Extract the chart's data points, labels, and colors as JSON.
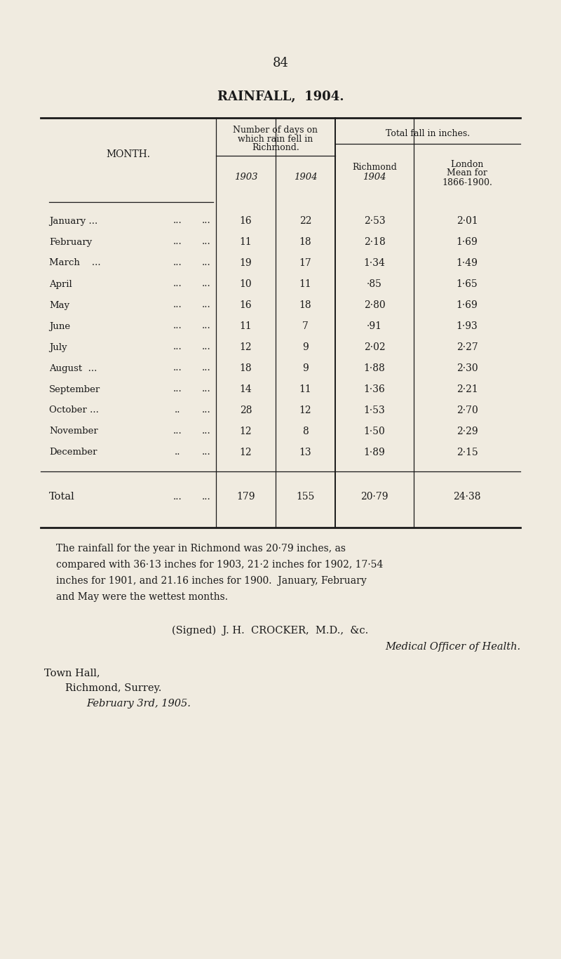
{
  "page_number": "84",
  "title": "RAINFALL,  1904.",
  "background_color": "#f0ebe0",
  "text_color": "#1a1a1a",
  "table": {
    "months": [
      "January ...",
      "February",
      "March    ...",
      "April",
      "May",
      "June",
      "July",
      "August  ...",
      "September",
      "October ...",
      "November",
      "December"
    ],
    "month_dots2": [
      "...",
      "...",
      "...",
      "...",
      "...",
      "...",
      "...",
      "...",
      "...",
      "..",
      "...",
      ".."
    ],
    "month_dots3": [
      "...",
      "...",
      "...",
      "...",
      "...",
      "...",
      "...",
      "...",
      "...",
      "...",
      "...",
      "..."
    ],
    "days_1903": [
      "16",
      "11",
      "19",
      "10",
      "16",
      "11",
      "12",
      "18",
      "14",
      "28",
      "12",
      "12"
    ],
    "days_1904": [
      "22",
      "18",
      "17",
      "11",
      "18",
      "7",
      "9",
      "9",
      "11",
      "12",
      "8",
      "13"
    ],
    "total_rich": [
      "2·53",
      "2·18",
      "1·34",
      "·85",
      "2·80",
      "·91",
      "2·02",
      "1·88",
      "1·36",
      "1·53",
      "1·50",
      "1·89"
    ],
    "total_london": [
      "2·01",
      "1·69",
      "1·49",
      "1·65",
      "1·69",
      "1·93",
      "2·27",
      "2·30",
      "2·21",
      "2·70",
      "2·29",
      "2·15"
    ],
    "total_days_1903": "179",
    "total_days_1904": "155",
    "total_rich_total": "20·79",
    "total_london_total": "24·38"
  },
  "para_lines": [
    "The rainfall for the year in Richmond was 20·79 inches, as",
    "compared with 36·13 inches for 1903, 21·2 inches for 1902, 17·54",
    "inches for 1901, and 21.16 inches for 1900.  January, February",
    "and May were the wettest months."
  ],
  "signed_line": "(Signed)  J. H.  CROCKER,  M.D.,  &c.",
  "signed_title": "Medical Officer of Health.",
  "address_line1": "Town Hall,",
  "address_line2": "Richmond, Surrey.",
  "address_line3": "February 3rd, 1905."
}
